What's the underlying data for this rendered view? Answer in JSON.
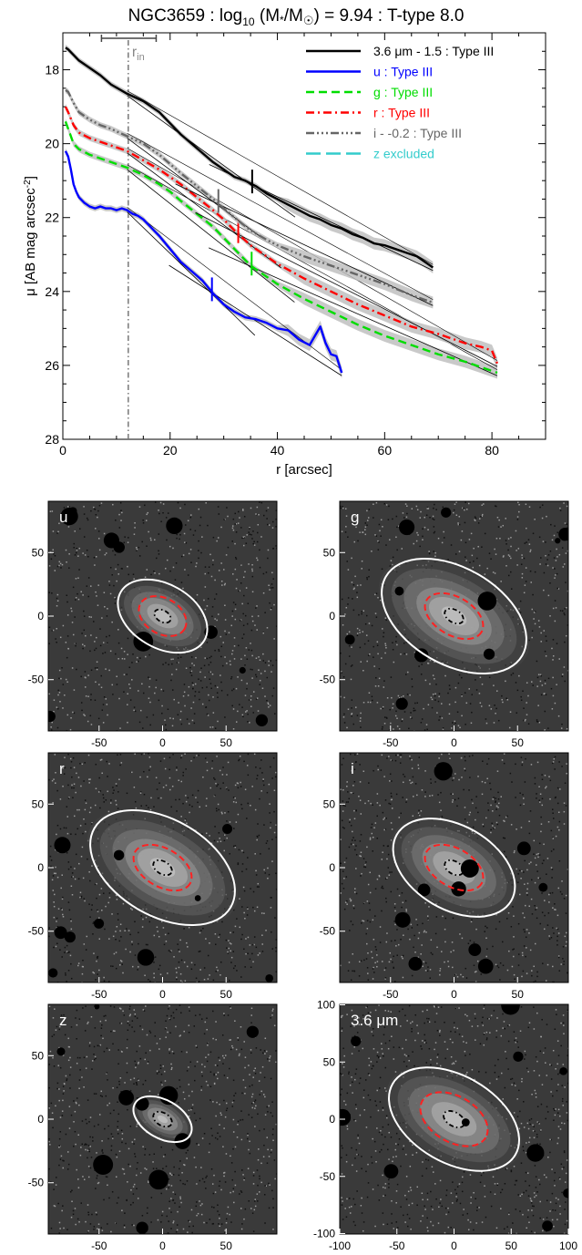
{
  "chart_data": [
    {
      "type": "line",
      "title": "NGC3659 : log",
      "title_sub": "10",
      "title_rest": " (M",
      "title_star": "*",
      "title_mid": "/M",
      "title_sun": "☉",
      "title_end": ") = 9.94 : T-type 8.0",
      "xlabel": "r [arcsec]",
      "ylabel": "μ [AB mag arcsec",
      "ylabel_sup": "-2",
      "ylabel_end": "]",
      "xlim": [
        0,
        90
      ],
      "ylim": [
        28,
        17
      ],
      "y_inverted": true,
      "xticks": [
        "0",
        "20",
        "40",
        "60",
        "80"
      ],
      "xtick_values": [
        0,
        20,
        40,
        60,
        80
      ],
      "yticks": [
        "18",
        "20",
        "22",
        "24",
        "26",
        "28"
      ],
      "ytick_values": [
        18,
        20,
        22,
        24,
        26,
        28
      ],
      "r_in": 12.2,
      "r_in_label": "r",
      "r_in_sub": "in",
      "r_in_range": [
        7.2,
        17.4
      ],
      "legend_position": "top-right",
      "series": [
        {
          "name": "3.6 μm - 1.5 : Type III",
          "color": "#000000",
          "dash": "solid",
          "x": [
            0.5,
            1,
            2,
            3,
            5,
            7,
            9,
            12,
            15,
            18,
            20,
            22,
            24,
            26,
            28,
            30,
            32,
            34,
            36,
            38,
            40,
            42,
            44,
            46,
            48,
            50,
            52,
            54,
            56,
            58,
            60,
            62,
            64,
            66,
            68,
            69
          ],
          "y": [
            17.4,
            17.45,
            17.6,
            17.75,
            17.95,
            18.15,
            18.4,
            18.65,
            18.85,
            19.15,
            19.45,
            19.75,
            20.0,
            20.25,
            20.5,
            20.7,
            20.9,
            21.0,
            21.15,
            21.35,
            21.5,
            21.65,
            21.8,
            21.95,
            22.05,
            22.2,
            22.3,
            22.45,
            22.55,
            22.7,
            22.75,
            22.85,
            22.95,
            23.05,
            23.25,
            23.35
          ],
          "break_r": 35.3
        },
        {
          "name": "u : Type III",
          "color": "#0000ff",
          "dash": "solid",
          "x": [
            0.5,
            1,
            1.5,
            2,
            2.5,
            3,
            4,
            5,
            6,
            7,
            8,
            9,
            10,
            11,
            12,
            13,
            14,
            15,
            16,
            18,
            20,
            22,
            24,
            26,
            28,
            30,
            32,
            34,
            36,
            38,
            40,
            42,
            44,
            46,
            47,
            48,
            49,
            50,
            51,
            52
          ],
          "y": [
            20.2,
            20.35,
            20.7,
            21.1,
            21.3,
            21.45,
            21.6,
            21.7,
            21.75,
            21.7,
            21.75,
            21.75,
            21.8,
            21.75,
            21.8,
            21.9,
            21.95,
            22.05,
            22.2,
            22.5,
            22.85,
            23.2,
            23.45,
            23.7,
            24.05,
            24.35,
            24.55,
            24.7,
            24.75,
            24.85,
            25.0,
            25.05,
            25.3,
            25.45,
            25.2,
            24.95,
            25.4,
            25.7,
            25.75,
            26.2
          ],
          "break_r": 27.8
        },
        {
          "name": "g : Type III",
          "color": "#00dd00",
          "dash": "dashed",
          "x": [
            0.5,
            1,
            2,
            3,
            5,
            7,
            9,
            12,
            15,
            18,
            20,
            22,
            25,
            28,
            30,
            32,
            35,
            38,
            40,
            45,
            50,
            55,
            60,
            65,
            70,
            75,
            78,
            80,
            81
          ],
          "y": [
            19.4,
            19.6,
            20.0,
            20.15,
            20.3,
            20.4,
            20.5,
            20.65,
            20.85,
            21.1,
            21.3,
            21.55,
            21.9,
            22.25,
            22.55,
            22.85,
            23.3,
            23.6,
            23.8,
            24.2,
            24.55,
            24.9,
            25.2,
            25.45,
            25.7,
            25.9,
            26.05,
            26.15,
            26.2
          ],
          "break_r": 35.2
        },
        {
          "name": "r : Type III",
          "color": "#ff0000",
          "dash": "dashdot",
          "x": [
            0.5,
            1,
            2,
            3,
            5,
            7,
            9,
            12,
            15,
            18,
            20,
            22,
            25,
            28,
            30,
            32,
            35,
            38,
            40,
            45,
            50,
            55,
            60,
            65,
            70,
            75,
            78,
            80,
            81
          ],
          "y": [
            19.0,
            19.15,
            19.5,
            19.7,
            19.85,
            19.95,
            20.05,
            20.2,
            20.45,
            20.7,
            20.9,
            21.1,
            21.45,
            21.8,
            22.05,
            22.35,
            22.75,
            23.05,
            23.25,
            23.65,
            24.0,
            24.35,
            24.65,
            24.95,
            25.15,
            25.4,
            25.5,
            25.6,
            25.95
          ],
          "break_r": 32.7
        },
        {
          "name": "i - -0.2 : Type III",
          "color": "#666666",
          "dash": "dashdotdotdot",
          "x": [
            0.5,
            1,
            2,
            3,
            5,
            7,
            9,
            12,
            15,
            18,
            20,
            22,
            25,
            28,
            30,
            32,
            35,
            38,
            40,
            45,
            50,
            55,
            60,
            65,
            69
          ],
          "y": [
            18.55,
            18.6,
            18.9,
            19.15,
            19.35,
            19.5,
            19.6,
            19.8,
            20.0,
            20.3,
            20.55,
            20.8,
            21.15,
            21.5,
            21.75,
            22.0,
            22.35,
            22.6,
            22.75,
            23.05,
            23.3,
            23.55,
            23.8,
            24.1,
            24.3
          ],
          "break_r": 29.0
        },
        {
          "name": "z excluded",
          "color": "#33cccc",
          "dash": "longdash",
          "x": [],
          "y": []
        }
      ]
    },
    {
      "type": "image-panels",
      "panels": [
        {
          "label": "u",
          "xticks": [
            "-50",
            "0",
            "50"
          ],
          "yticks": [
            "50",
            "0",
            "-50"
          ],
          "range": 90,
          "white_ellipse": [
            38,
            25
          ],
          "red_ellipse": [
            20,
            14
          ],
          "black_ellipse": [
            7,
            4.5
          ]
        },
        {
          "label": "g",
          "xticks": [
            "-50",
            "0",
            "50"
          ],
          "yticks": [
            "50",
            "0",
            "-50"
          ],
          "range": 90,
          "white_ellipse": [
            62,
            38
          ],
          "red_ellipse": [
            25,
            15
          ],
          "black_ellipse": [
            8,
            5
          ]
        },
        {
          "label": "r",
          "xticks": [
            "-50",
            "0",
            "50"
          ],
          "yticks": [
            "50",
            "0",
            "-50"
          ],
          "range": 90,
          "white_ellipse": [
            62,
            38
          ],
          "red_ellipse": [
            25,
            15
          ],
          "black_ellipse": [
            8,
            5
          ]
        },
        {
          "label": "i",
          "xticks": [
            "-50",
            "0",
            "50"
          ],
          "yticks": [
            "50",
            "0",
            "-50"
          ],
          "range": 90,
          "white_ellipse": [
            52,
            33
          ],
          "red_ellipse": [
            25,
            15
          ],
          "black_ellipse": [
            8,
            5
          ]
        },
        {
          "label": "z",
          "xticks": [
            "-50",
            "0",
            "50"
          ],
          "yticks": [
            "50",
            "0",
            "-50"
          ],
          "range": 90,
          "white_ellipse": [
            25,
            15
          ],
          "red_ellipse": [
            0,
            0
          ],
          "black_ellipse": [
            8,
            5
          ]
        },
        {
          "label": "3.6 μm",
          "xticks": [
            "-100",
            "-50",
            "0",
            "50",
            "100"
          ],
          "yticks": [
            "100",
            "50",
            "0",
            "-50",
            "-100"
          ],
          "range": 100,
          "white_ellipse": [
            62,
            38
          ],
          "red_ellipse": [
            32,
            20
          ],
          "black_ellipse": [
            10,
            6
          ]
        }
      ]
    }
  ]
}
